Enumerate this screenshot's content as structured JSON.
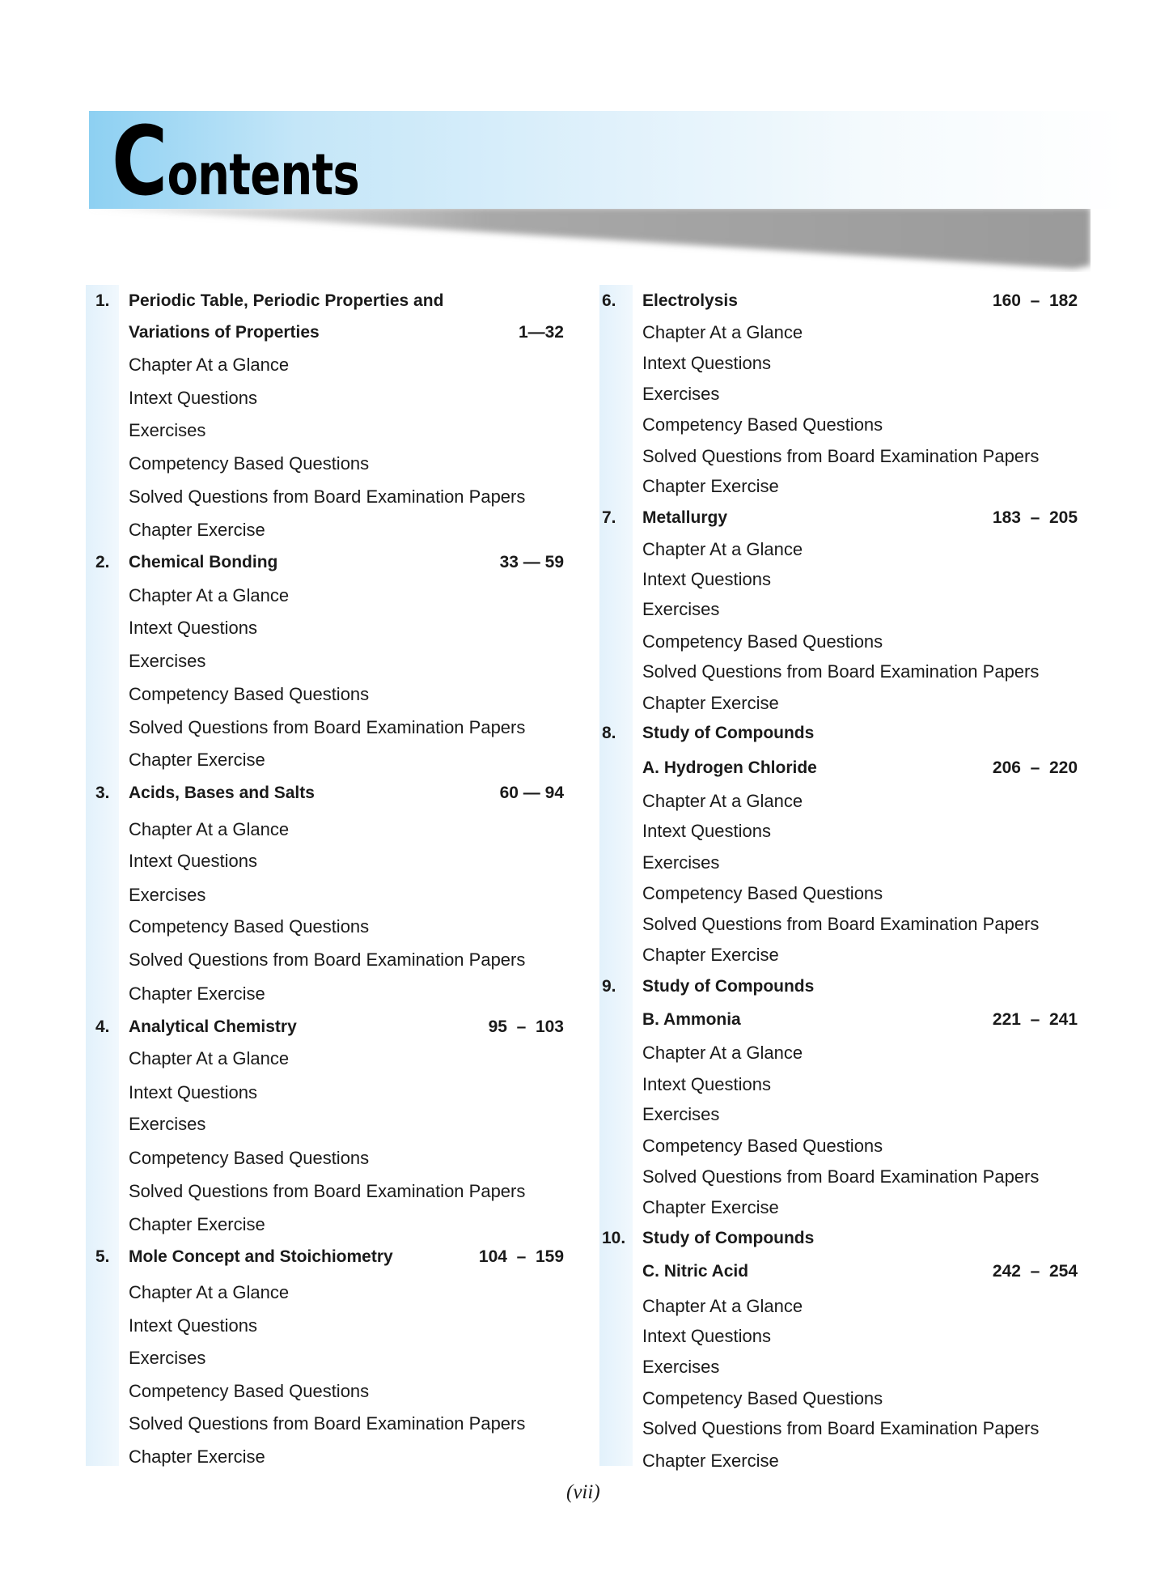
{
  "title": "Contents",
  "footer": "(vii)",
  "left_column": [
    {
      "number": "1.",
      "title_lines": [
        "Periodic Table, Periodic Properties and",
        "Variations of Properties"
      ],
      "pages": "1—32",
      "items": [
        "Chapter At a Glance",
        "Intext Questions",
        "Exercises",
        "Competency Based Questions",
        "Solved Questions from Board Examination Papers",
        "Chapter Exercise"
      ]
    },
    {
      "number": "2.",
      "title_lines": [
        "Chemical Bonding"
      ],
      "pages": "33 — 59",
      "items": [
        "Chapter At a Glance",
        "Intext Questions",
        "Exercises",
        "Competency Based Questions",
        "Solved Questions from Board Examination Papers",
        "Chapter Exercise"
      ]
    },
    {
      "number": "3.",
      "title_lines": [
        "Acids, Bases and Salts"
      ],
      "pages": "60 — 94",
      "items": [
        "Chapter At a Glance",
        "Intext Questions",
        "Exercises",
        "Competency Based Questions",
        "Solved Questions from Board Examination Papers",
        "Chapter Exercise"
      ]
    },
    {
      "number": "4.",
      "title_lines": [
        "Analytical Chemistry"
      ],
      "pages": "95  –  103",
      "items": [
        "Chapter At a Glance",
        "Intext Questions",
        "Exercises",
        "Competency Based Questions",
        "Solved Questions from Board Examination Papers",
        "Chapter Exercise"
      ]
    },
    {
      "number": "5.",
      "title_lines": [
        "Mole Concept and Stoichiometry"
      ],
      "pages": "104  –  159",
      "items": [
        "Chapter At a Glance",
        "Intext Questions",
        "Exercises",
        "Competency Based Questions",
        "Solved Questions from Board Examination Papers",
        "Chapter Exercise"
      ]
    }
  ],
  "right_column": [
    {
      "number": "6.",
      "title_lines": [
        "Electrolysis"
      ],
      "pages": "160  –  182",
      "items": [
        "Chapter At a Glance",
        "Intext Questions",
        "Exercises",
        "Competency Based Questions",
        "Solved Questions from Board Examination Papers",
        "Chapter Exercise"
      ]
    },
    {
      "number": "7.",
      "title_lines": [
        "Metallurgy"
      ],
      "pages": "183  –  205",
      "items": [
        "Chapter At a Glance",
        "Intext Questions",
        "Exercises",
        "Competency Based Questions",
        "Solved Questions from Board Examination Papers",
        "Chapter Exercise"
      ]
    },
    {
      "number": "8.",
      "title_lines": [
        "Study of Compounds",
        "A. Hydrogen Chloride"
      ],
      "pages": "206  –  220",
      "items": [
        "Chapter At a Glance",
        "Intext Questions",
        "Exercises",
        "Competency Based Questions",
        "Solved Questions from Board Examination Papers",
        "Chapter Exercise"
      ]
    },
    {
      "number": "9.",
      "title_lines": [
        "Study of Compounds",
        "B. Ammonia"
      ],
      "pages": "221  –  241",
      "items": [
        "Chapter At a Glance",
        "Intext Questions",
        "Exercises",
        "Competency Based Questions",
        "Solved Questions from Board Examination Papers",
        "Chapter Exercise"
      ]
    },
    {
      "number": "10.",
      "title_lines": [
        "Study of Compounds",
        "C. Nitric Acid"
      ],
      "pages": "242  –  254",
      "items": [
        "Chapter At a Glance",
        "Intext Questions",
        "Exercises",
        "Competency Based Questions",
        "Solved Questions from Board Examination Papers",
        "Chapter Exercise"
      ]
    }
  ]
}
